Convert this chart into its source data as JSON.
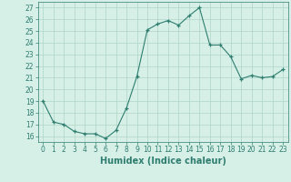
{
  "x": [
    0,
    1,
    2,
    3,
    4,
    5,
    6,
    7,
    8,
    9,
    10,
    11,
    12,
    13,
    14,
    15,
    16,
    17,
    18,
    19,
    20,
    21,
    22,
    23
  ],
  "y": [
    19,
    17.2,
    17.0,
    16.4,
    16.2,
    16.2,
    15.8,
    16.5,
    18.4,
    21.1,
    25.1,
    25.6,
    25.9,
    25.5,
    26.3,
    27.0,
    23.8,
    23.8,
    22.8,
    20.9,
    21.2,
    21.0,
    21.1,
    21.7
  ],
  "xlim": [
    -0.5,
    23.5
  ],
  "ylim": [
    15.5,
    27.5
  ],
  "yticks": [
    16,
    17,
    18,
    19,
    20,
    21,
    22,
    23,
    24,
    25,
    26,
    27
  ],
  "xticks": [
    0,
    1,
    2,
    3,
    4,
    5,
    6,
    7,
    8,
    9,
    10,
    11,
    12,
    13,
    14,
    15,
    16,
    17,
    18,
    19,
    20,
    21,
    22,
    23
  ],
  "xlabel": "Humidex (Indice chaleur)",
  "line_color": "#2e7d6e",
  "marker_color": "#2e7d6e",
  "bg_color": "#d6f0e8",
  "grid_color": "#b0d4c8",
  "tick_fontsize": 5.5,
  "label_fontsize": 7
}
